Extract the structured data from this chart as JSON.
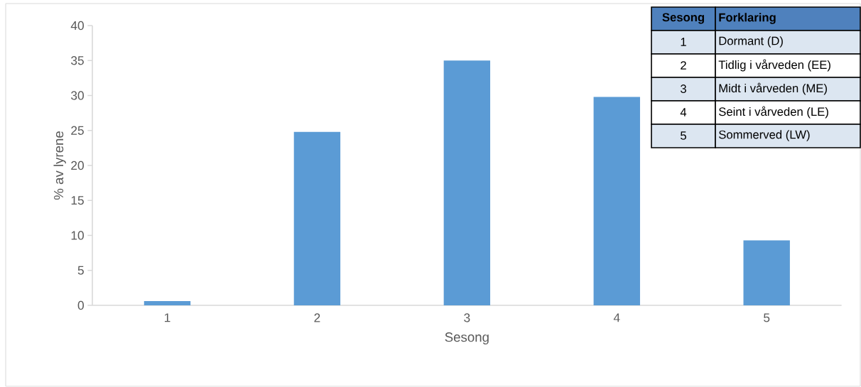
{
  "chart_data": {
    "type": "bar",
    "xlabel": "Sesong",
    "ylabel": "% av lyrene",
    "categories": [
      "1",
      "2",
      "3",
      "4",
      "5"
    ],
    "values": [
      0.6,
      24.8,
      35.0,
      29.8,
      9.3
    ],
    "color": "#5b9bd5",
    "ylim": [
      0,
      40
    ],
    "yticks": [
      0,
      5,
      10,
      15,
      20,
      25,
      30,
      35,
      40
    ],
    "annotations": [
      "Sesong",
      "Forklaring",
      "1",
      "Dormant (D)",
      "2",
      "Tidlig i vårveden (EE)",
      "3",
      "Midt i vårveden (ME)",
      "4",
      "Seint i vårveden (LE)",
      "5",
      "Sommerved (LW)"
    ]
  }
}
